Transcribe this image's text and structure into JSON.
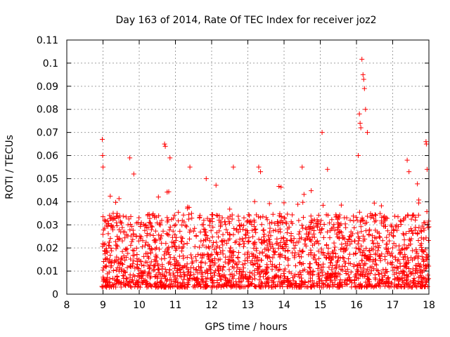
{
  "chart_data": {
    "type": "scatter",
    "title": "Day 163 of 2014, Rate Of TEC Index for receiver joz2",
    "xlabel": "GPS time / hours",
    "ylabel": "ROTI / TECUs",
    "xlim": [
      8,
      18
    ],
    "ylim": [
      0,
      0.11
    ],
    "xticks": [
      8,
      9,
      10,
      11,
      12,
      13,
      14,
      15,
      16,
      17,
      18
    ],
    "yticks": [
      0,
      0.01,
      0.02,
      0.03,
      0.04,
      0.05,
      0.06,
      0.07,
      0.08,
      0.09,
      0.1,
      0.11
    ],
    "xtick_labels": [
      "8",
      "9",
      "10",
      "11",
      "12",
      "13",
      "14",
      "15",
      "16",
      "17",
      "18"
    ],
    "ytick_labels": [
      "0",
      "0.01",
      "0.02",
      "0.03",
      "0.04",
      "0.05",
      "0.06",
      "0.07",
      "0.08",
      "0.09",
      "0.1",
      "0.11"
    ],
    "grid": true,
    "marker": "+",
    "color": "#ff0000",
    "series": [
      {
        "name": "ROTI",
        "description": "dense cloud of points between 9 and 18 hours, mostly 0.003-0.045 TECU/min",
        "x_range": [
          8.97,
          18.0
        ],
        "base_range": [
          0.003,
          0.035
        ],
        "notable_points": [
          {
            "x": 8.98,
            "y": 0.067
          },
          {
            "x": 8.99,
            "y": 0.06
          },
          {
            "x": 9.0,
            "y": 0.055
          },
          {
            "x": 9.74,
            "y": 0.059
          },
          {
            "x": 9.85,
            "y": 0.052
          },
          {
            "x": 10.7,
            "y": 0.065
          },
          {
            "x": 10.72,
            "y": 0.064
          },
          {
            "x": 10.85,
            "y": 0.059
          },
          {
            "x": 11.4,
            "y": 0.055
          },
          {
            "x": 11.85,
            "y": 0.05
          },
          {
            "x": 12.6,
            "y": 0.055
          },
          {
            "x": 13.3,
            "y": 0.055
          },
          {
            "x": 13.35,
            "y": 0.053
          },
          {
            "x": 14.5,
            "y": 0.055
          },
          {
            "x": 15.05,
            "y": 0.07
          },
          {
            "x": 15.2,
            "y": 0.054
          },
          {
            "x": 16.05,
            "y": 0.06
          },
          {
            "x": 16.08,
            "y": 0.078
          },
          {
            "x": 16.1,
            "y": 0.074
          },
          {
            "x": 16.12,
            "y": 0.072
          },
          {
            "x": 16.15,
            "y": 0.1017
          },
          {
            "x": 16.18,
            "y": 0.095
          },
          {
            "x": 16.2,
            "y": 0.093
          },
          {
            "x": 16.22,
            "y": 0.089
          },
          {
            "x": 16.25,
            "y": 0.08
          },
          {
            "x": 16.3,
            "y": 0.07
          },
          {
            "x": 17.4,
            "y": 0.058
          },
          {
            "x": 17.45,
            "y": 0.053
          },
          {
            "x": 17.92,
            "y": 0.066
          },
          {
            "x": 17.93,
            "y": 0.065
          },
          {
            "x": 17.95,
            "y": 0.054
          }
        ]
      }
    ]
  }
}
